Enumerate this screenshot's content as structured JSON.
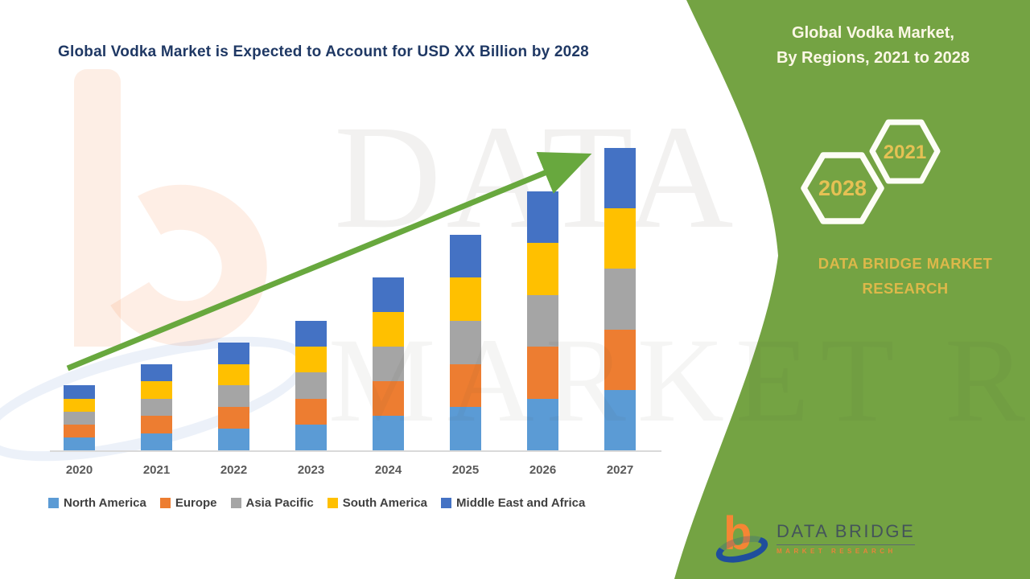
{
  "title": "Global Vodka Market is Expected to Account for USD XX Billion by 2028",
  "watermarks": {
    "row1": "DATA BRIDGE",
    "row2": "MARKET RESEARCH"
  },
  "sidebar": {
    "header_line1": "Global Vodka Market,",
    "header_line2": "By Regions, 2021 to 2028",
    "hexagons": [
      {
        "label": "2028"
      },
      {
        "label": "2021"
      }
    ],
    "brand_line1": "DATA BRIDGE MARKET",
    "brand_line2": "RESEARCH",
    "panel_color": "#74A343",
    "header_text_color": "#FCF7E6",
    "accent_gold": "#DDB84A"
  },
  "footer_logo": {
    "name": "DATA BRIDGE",
    "tagline": "MARKET RESEARCH"
  },
  "chart_data": {
    "type": "bar",
    "stacked": true,
    "title": "Global Vodka Market is Expected to Account for USD XX Billion by 2028",
    "categories": [
      "2020",
      "2021",
      "2022",
      "2023",
      "2024",
      "2025",
      "2026",
      "2027"
    ],
    "series": [
      {
        "name": "North America",
        "color": "#5B9BD5",
        "values": [
          3,
          4,
          5,
          6,
          8,
          10,
          12,
          14
        ]
      },
      {
        "name": "Europe",
        "color": "#ED7D31",
        "values": [
          3,
          4,
          5,
          6,
          8,
          10,
          12,
          14
        ]
      },
      {
        "name": "Asia Pacific",
        "color": "#A5A5A5",
        "values": [
          3,
          4,
          5,
          6,
          8,
          10,
          12,
          14
        ]
      },
      {
        "name": "South America",
        "color": "#FFC000",
        "values": [
          3,
          4,
          5,
          6,
          8,
          10,
          12,
          14
        ]
      },
      {
        "name": "Middle East and Africa",
        "color": "#4472C4",
        "values": [
          3,
          4,
          5,
          6,
          8,
          10,
          12,
          14
        ]
      }
    ],
    "stack_totals": [
      15,
      20,
      25,
      30,
      40,
      50,
      60,
      70
    ],
    "xlabel": "",
    "ylabel": "",
    "ylim": [
      0,
      70
    ],
    "y_axis_shown": false,
    "gridlines": false,
    "legend_position": "bottom",
    "annotations": [
      "upward green trend arrow from 2020 to 2027"
    ],
    "trend_arrow_color": "#68A83E"
  }
}
